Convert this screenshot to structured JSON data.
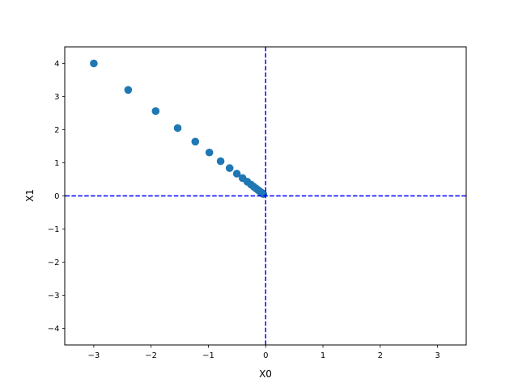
{
  "chart_data": {
    "type": "scatter",
    "title": "",
    "xlabel": "X0",
    "ylabel": "X1",
    "xlim": [
      -3.5,
      3.5
    ],
    "ylim": [
      -4.5,
      4.5
    ],
    "xticks": [
      -3,
      -2,
      -1,
      0,
      1,
      2,
      3
    ],
    "yticks": [
      -4,
      -3,
      -2,
      -1,
      0,
      1,
      2,
      3,
      4
    ],
    "xtick_labels": [
      "−3",
      "−2",
      "−1",
      "0",
      "1",
      "2",
      "3"
    ],
    "ytick_labels": [
      "−4",
      "−3",
      "−2",
      "−1",
      "0",
      "1",
      "2",
      "3",
      "4"
    ],
    "grid": false,
    "marker_color": "#1f77b4",
    "reference_lines": {
      "color": "#0000ff",
      "style": "dashed",
      "x": 0,
      "y": 0
    },
    "x": [
      -3,
      -2.4,
      -1.92,
      -1.536,
      -1.2288,
      -0.983,
      -0.7864,
      -0.6291,
      -0.5033,
      -0.4027,
      -0.3221,
      -0.2577,
      -0.2062,
      -0.1649,
      -0.1319,
      -0.1056,
      -0.0844,
      -0.0676,
      -0.054,
      -0.0432
    ],
    "y": [
      4,
      3.2,
      2.56,
      2.048,
      1.6384,
      1.3107,
      1.0486,
      0.8389,
      0.6711,
      0.5369,
      0.4295,
      0.3436,
      0.2749,
      0.2199,
      0.1759,
      0.1407,
      0.1126,
      0.0901,
      0.0721,
      0.0576
    ]
  }
}
